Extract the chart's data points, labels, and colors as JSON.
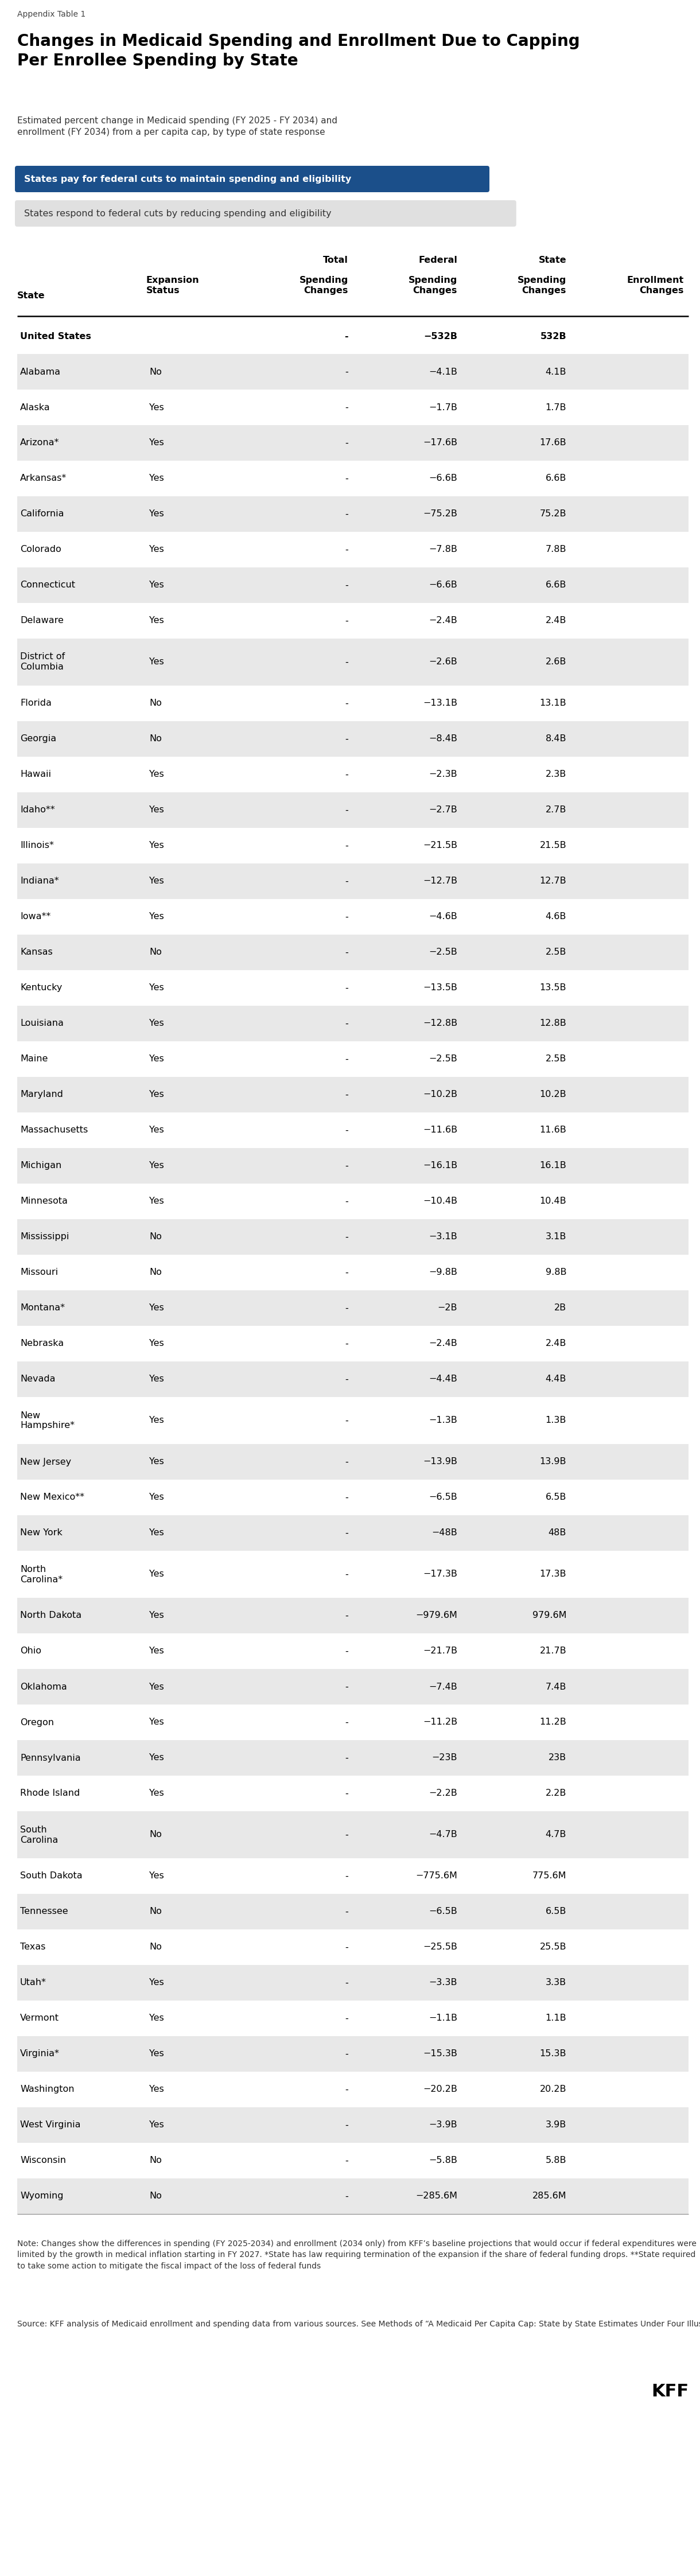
{
  "appendix_label": "Appendix Table 1",
  "title": "Changes in Medicaid Spending and Enrollment Due to Capping\nPer Enrollee Spending by State",
  "subtitle": "Estimated percent change in Medicaid spending (FY 2025 - FY 2034) and\nenrollment (FY 2034) from a per capita cap, by type of state response",
  "legend1_text": "States pay for federal cuts to maintain spending and eligibility",
  "legend2_text": "States respond to federal cuts by reducing spending and eligibility",
  "rows": [
    {
      "state": "United States",
      "expansion": "",
      "total": "-",
      "federal": "−532B",
      "state_col": "532B",
      "enrollment": "",
      "shaded": false,
      "bold": true
    },
    {
      "state": "Alabama",
      "expansion": "No",
      "total": "-",
      "federal": "−4.1B",
      "state_col": "4.1B",
      "enrollment": "",
      "shaded": true,
      "bold": false
    },
    {
      "state": "Alaska",
      "expansion": "Yes",
      "total": "-",
      "federal": "−1.7B",
      "state_col": "1.7B",
      "enrollment": "",
      "shaded": false,
      "bold": false
    },
    {
      "state": "Arizona*",
      "expansion": "Yes",
      "total": "-",
      "federal": "−17.6B",
      "state_col": "17.6B",
      "enrollment": "",
      "shaded": true,
      "bold": false
    },
    {
      "state": "Arkansas*",
      "expansion": "Yes",
      "total": "-",
      "federal": "−6.6B",
      "state_col": "6.6B",
      "enrollment": "",
      "shaded": false,
      "bold": false
    },
    {
      "state": "California",
      "expansion": "Yes",
      "total": "-",
      "federal": "−75.2B",
      "state_col": "75.2B",
      "enrollment": "",
      "shaded": true,
      "bold": false
    },
    {
      "state": "Colorado",
      "expansion": "Yes",
      "total": "-",
      "federal": "−7.8B",
      "state_col": "7.8B",
      "enrollment": "",
      "shaded": false,
      "bold": false
    },
    {
      "state": "Connecticut",
      "expansion": "Yes",
      "total": "-",
      "federal": "−6.6B",
      "state_col": "6.6B",
      "enrollment": "",
      "shaded": true,
      "bold": false
    },
    {
      "state": "Delaware",
      "expansion": "Yes",
      "total": "-",
      "federal": "−2.4B",
      "state_col": "2.4B",
      "enrollment": "",
      "shaded": false,
      "bold": false
    },
    {
      "state": "District of\nColumbia",
      "expansion": "Yes",
      "total": "-",
      "federal": "−2.6B",
      "state_col": "2.6B",
      "enrollment": "",
      "shaded": true,
      "bold": false
    },
    {
      "state": "Florida",
      "expansion": "No",
      "total": "-",
      "federal": "−13.1B",
      "state_col": "13.1B",
      "enrollment": "",
      "shaded": false,
      "bold": false
    },
    {
      "state": "Georgia",
      "expansion": "No",
      "total": "-",
      "federal": "−8.4B",
      "state_col": "8.4B",
      "enrollment": "",
      "shaded": true,
      "bold": false
    },
    {
      "state": "Hawaii",
      "expansion": "Yes",
      "total": "-",
      "federal": "−2.3B",
      "state_col": "2.3B",
      "enrollment": "",
      "shaded": false,
      "bold": false
    },
    {
      "state": "Idaho**",
      "expansion": "Yes",
      "total": "-",
      "federal": "−2.7B",
      "state_col": "2.7B",
      "enrollment": "",
      "shaded": true,
      "bold": false
    },
    {
      "state": "Illinois*",
      "expansion": "Yes",
      "total": "-",
      "federal": "−21.5B",
      "state_col": "21.5B",
      "enrollment": "",
      "shaded": false,
      "bold": false
    },
    {
      "state": "Indiana*",
      "expansion": "Yes",
      "total": "-",
      "federal": "−12.7B",
      "state_col": "12.7B",
      "enrollment": "",
      "shaded": true,
      "bold": false
    },
    {
      "state": "Iowa**",
      "expansion": "Yes",
      "total": "-",
      "federal": "−4.6B",
      "state_col": "4.6B",
      "enrollment": "",
      "shaded": false,
      "bold": false
    },
    {
      "state": "Kansas",
      "expansion": "No",
      "total": "-",
      "federal": "−2.5B",
      "state_col": "2.5B",
      "enrollment": "",
      "shaded": true,
      "bold": false
    },
    {
      "state": "Kentucky",
      "expansion": "Yes",
      "total": "-",
      "federal": "−13.5B",
      "state_col": "13.5B",
      "enrollment": "",
      "shaded": false,
      "bold": false
    },
    {
      "state": "Louisiana",
      "expansion": "Yes",
      "total": "-",
      "federal": "−12.8B",
      "state_col": "12.8B",
      "enrollment": "",
      "shaded": true,
      "bold": false
    },
    {
      "state": "Maine",
      "expansion": "Yes",
      "total": "-",
      "federal": "−2.5B",
      "state_col": "2.5B",
      "enrollment": "",
      "shaded": false,
      "bold": false
    },
    {
      "state": "Maryland",
      "expansion": "Yes",
      "total": "-",
      "federal": "−10.2B",
      "state_col": "10.2B",
      "enrollment": "",
      "shaded": true,
      "bold": false
    },
    {
      "state": "Massachusetts",
      "expansion": "Yes",
      "total": "-",
      "federal": "−11.6B",
      "state_col": "11.6B",
      "enrollment": "",
      "shaded": false,
      "bold": false
    },
    {
      "state": "Michigan",
      "expansion": "Yes",
      "total": "-",
      "federal": "−16.1B",
      "state_col": "16.1B",
      "enrollment": "",
      "shaded": true,
      "bold": false
    },
    {
      "state": "Minnesota",
      "expansion": "Yes",
      "total": "-",
      "federal": "−10.4B",
      "state_col": "10.4B",
      "enrollment": "",
      "shaded": false,
      "bold": false
    },
    {
      "state": "Mississippi",
      "expansion": "No",
      "total": "-",
      "federal": "−3.1B",
      "state_col": "3.1B",
      "enrollment": "",
      "shaded": true,
      "bold": false
    },
    {
      "state": "Missouri",
      "expansion": "No",
      "total": "-",
      "federal": "−9.8B",
      "state_col": "9.8B",
      "enrollment": "",
      "shaded": false,
      "bold": false
    },
    {
      "state": "Montana*",
      "expansion": "Yes",
      "total": "-",
      "federal": "−2B",
      "state_col": "2B",
      "enrollment": "",
      "shaded": true,
      "bold": false
    },
    {
      "state": "Nebraska",
      "expansion": "Yes",
      "total": "-",
      "federal": "−2.4B",
      "state_col": "2.4B",
      "enrollment": "",
      "shaded": false,
      "bold": false
    },
    {
      "state": "Nevada",
      "expansion": "Yes",
      "total": "-",
      "federal": "−4.4B",
      "state_col": "4.4B",
      "enrollment": "",
      "shaded": true,
      "bold": false
    },
    {
      "state": "New\nHampshire*",
      "expansion": "Yes",
      "total": "-",
      "federal": "−1.3B",
      "state_col": "1.3B",
      "enrollment": "",
      "shaded": false,
      "bold": false
    },
    {
      "state": "New Jersey",
      "expansion": "Yes",
      "total": "-",
      "federal": "−13.9B",
      "state_col": "13.9B",
      "enrollment": "",
      "shaded": true,
      "bold": false
    },
    {
      "state": "New Mexico**",
      "expansion": "Yes",
      "total": "-",
      "federal": "−6.5B",
      "state_col": "6.5B",
      "enrollment": "",
      "shaded": false,
      "bold": false
    },
    {
      "state": "New York",
      "expansion": "Yes",
      "total": "-",
      "federal": "−48B",
      "state_col": "48B",
      "enrollment": "",
      "shaded": true,
      "bold": false
    },
    {
      "state": "North\nCarolina*",
      "expansion": "Yes",
      "total": "-",
      "federal": "−17.3B",
      "state_col": "17.3B",
      "enrollment": "",
      "shaded": false,
      "bold": false
    },
    {
      "state": "North Dakota",
      "expansion": "Yes",
      "total": "-",
      "federal": "−979.6M",
      "state_col": "979.6M",
      "enrollment": "",
      "shaded": true,
      "bold": false
    },
    {
      "state": "Ohio",
      "expansion": "Yes",
      "total": "-",
      "federal": "−21.7B",
      "state_col": "21.7B",
      "enrollment": "",
      "shaded": false,
      "bold": false
    },
    {
      "state": "Oklahoma",
      "expansion": "Yes",
      "total": "-",
      "federal": "−7.4B",
      "state_col": "7.4B",
      "enrollment": "",
      "shaded": true,
      "bold": false
    },
    {
      "state": "Oregon",
      "expansion": "Yes",
      "total": "-",
      "federal": "−11.2B",
      "state_col": "11.2B",
      "enrollment": "",
      "shaded": false,
      "bold": false
    },
    {
      "state": "Pennsylvania",
      "expansion": "Yes",
      "total": "-",
      "federal": "−23B",
      "state_col": "23B",
      "enrollment": "",
      "shaded": true,
      "bold": false
    },
    {
      "state": "Rhode Island",
      "expansion": "Yes",
      "total": "-",
      "federal": "−2.2B",
      "state_col": "2.2B",
      "enrollment": "",
      "shaded": false,
      "bold": false
    },
    {
      "state": "South\nCarolina",
      "expansion": "No",
      "total": "-",
      "federal": "−4.7B",
      "state_col": "4.7B",
      "enrollment": "",
      "shaded": true,
      "bold": false
    },
    {
      "state": "South Dakota",
      "expansion": "Yes",
      "total": "-",
      "federal": "−775.6M",
      "state_col": "775.6M",
      "enrollment": "",
      "shaded": false,
      "bold": false
    },
    {
      "state": "Tennessee",
      "expansion": "No",
      "total": "-",
      "federal": "−6.5B",
      "state_col": "6.5B",
      "enrollment": "",
      "shaded": true,
      "bold": false
    },
    {
      "state": "Texas",
      "expansion": "No",
      "total": "-",
      "federal": "−25.5B",
      "state_col": "25.5B",
      "enrollment": "",
      "shaded": false,
      "bold": false
    },
    {
      "state": "Utah*",
      "expansion": "Yes",
      "total": "-",
      "federal": "−3.3B",
      "state_col": "3.3B",
      "enrollment": "",
      "shaded": true,
      "bold": false
    },
    {
      "state": "Vermont",
      "expansion": "Yes",
      "total": "-",
      "federal": "−1.1B",
      "state_col": "1.1B",
      "enrollment": "",
      "shaded": false,
      "bold": false
    },
    {
      "state": "Virginia*",
      "expansion": "Yes",
      "total": "-",
      "federal": "−15.3B",
      "state_col": "15.3B",
      "enrollment": "",
      "shaded": true,
      "bold": false
    },
    {
      "state": "Washington",
      "expansion": "Yes",
      "total": "-",
      "federal": "−20.2B",
      "state_col": "20.2B",
      "enrollment": "",
      "shaded": false,
      "bold": false
    },
    {
      "state": "West Virginia",
      "expansion": "Yes",
      "total": "-",
      "federal": "−3.9B",
      "state_col": "3.9B",
      "enrollment": "",
      "shaded": true,
      "bold": false
    },
    {
      "state": "Wisconsin",
      "expansion": "No",
      "total": "-",
      "federal": "−5.8B",
      "state_col": "5.8B",
      "enrollment": "",
      "shaded": false,
      "bold": false
    },
    {
      "state": "Wyoming",
      "expansion": "No",
      "total": "-",
      "federal": "−285.6M",
      "state_col": "285.6M",
      "enrollment": "",
      "shaded": true,
      "bold": false
    }
  ],
  "footer_note": "Note: Changes show the differences in spending (FY 2025-2034) and enrollment (2034 only) from KFF’s baseline projections that would occur if federal expenditures were limited by the growth in medical inflation starting in FY 2027. *State has law requiring termination of the expansion if the share of federal funding drops. **State required to take some action to mitigate the fiscal impact of the loss of federal funds",
  "source_note": "Source: KFF analysis of Medicaid enrollment and spending data from various sources. See Methods of “A Medicaid Per Capita Cap: State by State Estimates Under Four Illustrative Scenarios” for more information about projections and assumptions.",
  "kff_logo": "KFF",
  "blue_color": "#1B4F8A",
  "legend1_color": "#1B4F8A",
  "legend2_color": "#E0E0E0",
  "shaded_row_color": "#E8E8E8",
  "white_row_color": "#FFFFFF",
  "text_color": "#222222"
}
